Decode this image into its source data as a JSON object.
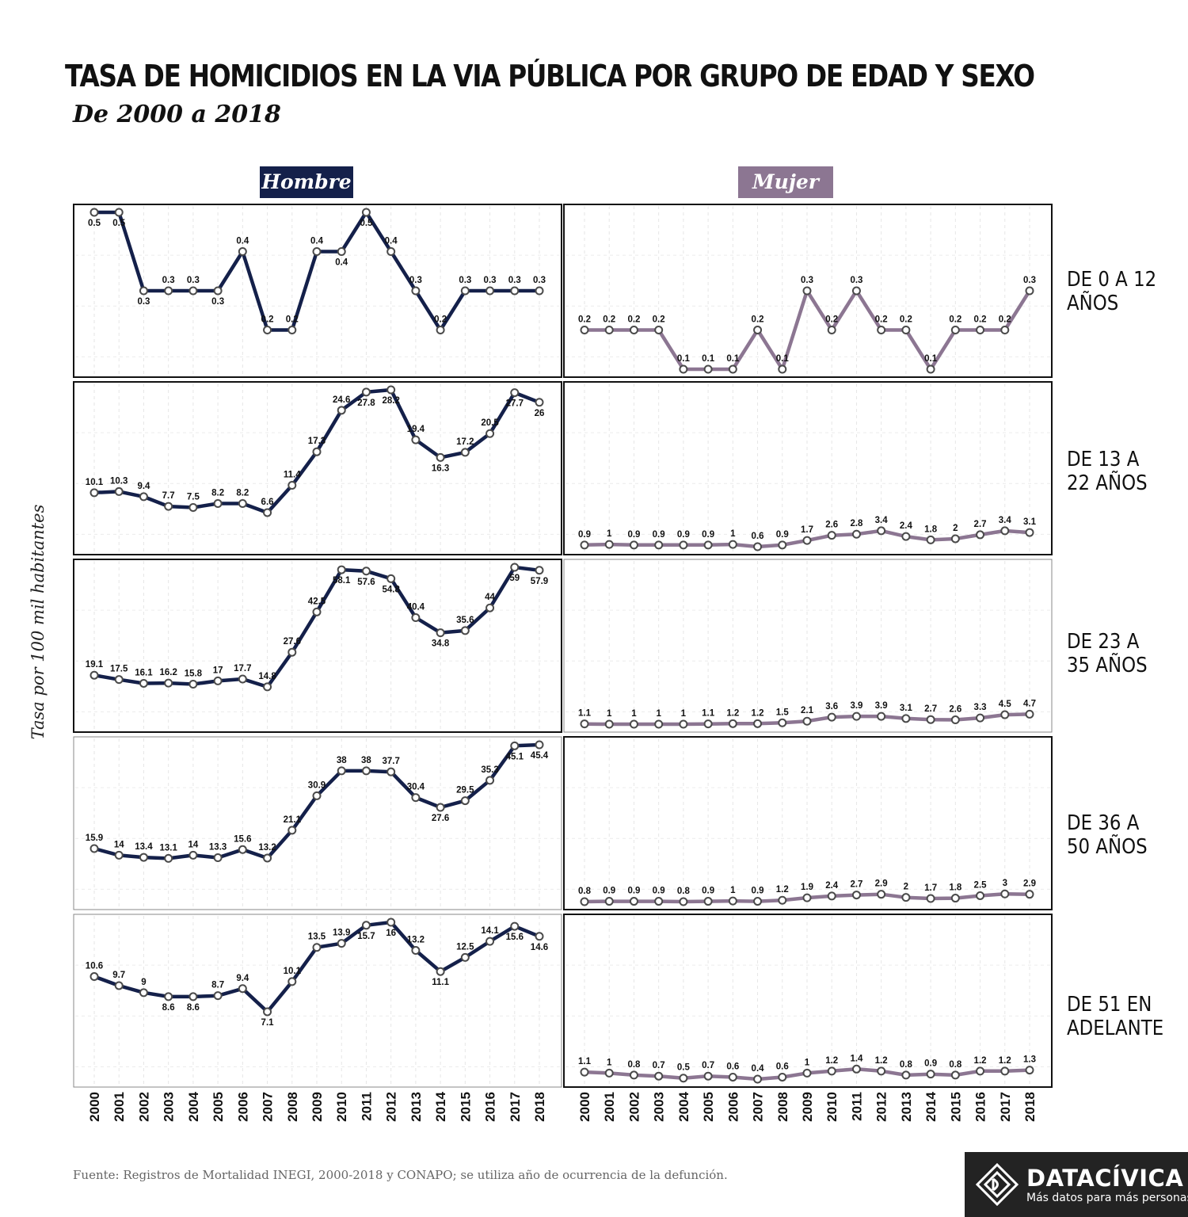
{
  "title": "TASA DE HOMICIDIOS EN LA VIA PÚBLICA POR GRUPO DE EDAD Y SEXO",
  "subtitle": "De 2000 a 2018",
  "ylabel": "Tasa por 100 mil habitantes",
  "source": "Fuente: Registros de Mortalidad INEGI, 2000-2018 y CONAPO; se utiliza año de ocurrencia de la defunción.",
  "logo": {
    "name": "DATACÍVICA",
    "tagline": "Más datos para más personas",
    "icon": "datacivica-diamond-icon"
  },
  "colors": {
    "hombre": "#14204a",
    "mujer": "#8c7692"
  },
  "chart_data": {
    "type": "line",
    "title": "TASA DE HOMICIDIOS EN LA VIA PÚBLICA POR GRUPO DE EDAD Y SEXO",
    "ylabel": "Tasa por 100 mil habitantes",
    "x": [
      "2000",
      "2001",
      "2002",
      "2003",
      "2004",
      "2005",
      "2006",
      "2007",
      "2008",
      "2009",
      "2010",
      "2011",
      "2012",
      "2013",
      "2014",
      "2015",
      "2016",
      "2017",
      "2018"
    ],
    "columns": [
      "Hombre",
      "Mujer"
    ],
    "rows": [
      {
        "label": "DE 0 A 12 AÑOS",
        "Hombre": [
          0.5,
          0.5,
          0.3,
          0.3,
          0.3,
          0.3,
          0.4,
          0.2,
          0.2,
          0.4,
          0.4,
          0.5,
          0.4,
          0.3,
          0.2,
          0.3,
          0.3,
          0.3,
          0.3
        ],
        "Mujer": [
          0.2,
          0.2,
          0.2,
          0.2,
          0.1,
          0.1,
          0.1,
          0.2,
          0.1,
          0.3,
          0.2,
          0.3,
          0.2,
          0.2,
          0.1,
          0.2,
          0.2,
          0.2,
          0.3
        ]
      },
      {
        "label": "DE 13 A 22 AÑOS",
        "Hombre": [
          10.1,
          10.3,
          9.4,
          7.7,
          7.5,
          8.2,
          8.2,
          6.6,
          11.4,
          17.3,
          24.6,
          27.8,
          28.2,
          19.4,
          16.3,
          17.2,
          20.5,
          27.7,
          26
        ],
        "Mujer": [
          0.9,
          1,
          0.9,
          0.9,
          0.9,
          0.9,
          1,
          0.6,
          0.9,
          1.7,
          2.6,
          2.8,
          3.4,
          2.4,
          1.8,
          2,
          2.7,
          3.4,
          3.1
        ]
      },
      {
        "label": "DE 23 A 35 AÑOS",
        "Hombre": [
          19.1,
          17.5,
          16.1,
          16.2,
          15.8,
          17,
          17.7,
          14.8,
          27.6,
          42.5,
          58.1,
          57.6,
          54.8,
          40.4,
          34.8,
          35.6,
          44,
          59,
          57.9
        ],
        "Mujer": [
          1.1,
          1,
          1,
          1,
          1,
          1.1,
          1.2,
          1.2,
          1.5,
          2.1,
          3.6,
          3.9,
          3.9,
          3.1,
          2.7,
          2.6,
          3.3,
          4.5,
          4.7
        ]
      },
      {
        "label": "DE 36 A 50 AÑOS",
        "Hombre": [
          15.9,
          14,
          13.4,
          13.1,
          14,
          13.3,
          15.6,
          13.2,
          21.1,
          30.9,
          38,
          38,
          37.7,
          30.4,
          27.6,
          29.5,
          35.3,
          45.1,
          45.4
        ],
        "Mujer": [
          0.8,
          0.9,
          0.9,
          0.9,
          0.8,
          0.9,
          1,
          0.9,
          1.2,
          1.9,
          2.4,
          2.7,
          2.9,
          2,
          1.7,
          1.8,
          2.5,
          3,
          2.9
        ]
      },
      {
        "label": "DE 51 EN ADELANTE",
        "Hombre": [
          10.6,
          9.7,
          9,
          8.6,
          8.6,
          8.7,
          9.4,
          7.1,
          10.1,
          13.5,
          13.9,
          15.7,
          16,
          13.2,
          11.1,
          12.5,
          14.1,
          15.6,
          14.6
        ],
        "Mujer": [
          1.1,
          1,
          0.8,
          0.7,
          0.5,
          0.7,
          0.6,
          0.4,
          0.6,
          1,
          1.2,
          1.4,
          1.2,
          0.8,
          0.9,
          0.8,
          1.2,
          1.2,
          1.3
        ]
      }
    ],
    "row_labels_display": [
      [
        "DE 0 A 12",
        "AÑOS"
      ],
      [
        "DE 13 A",
        "22 AÑOS"
      ],
      [
        "DE 23 A",
        "35 AÑOS"
      ],
      [
        "DE 36 A",
        "50 AÑOS"
      ],
      [
        "DE 51 EN",
        "ADELANTE"
      ]
    ]
  }
}
